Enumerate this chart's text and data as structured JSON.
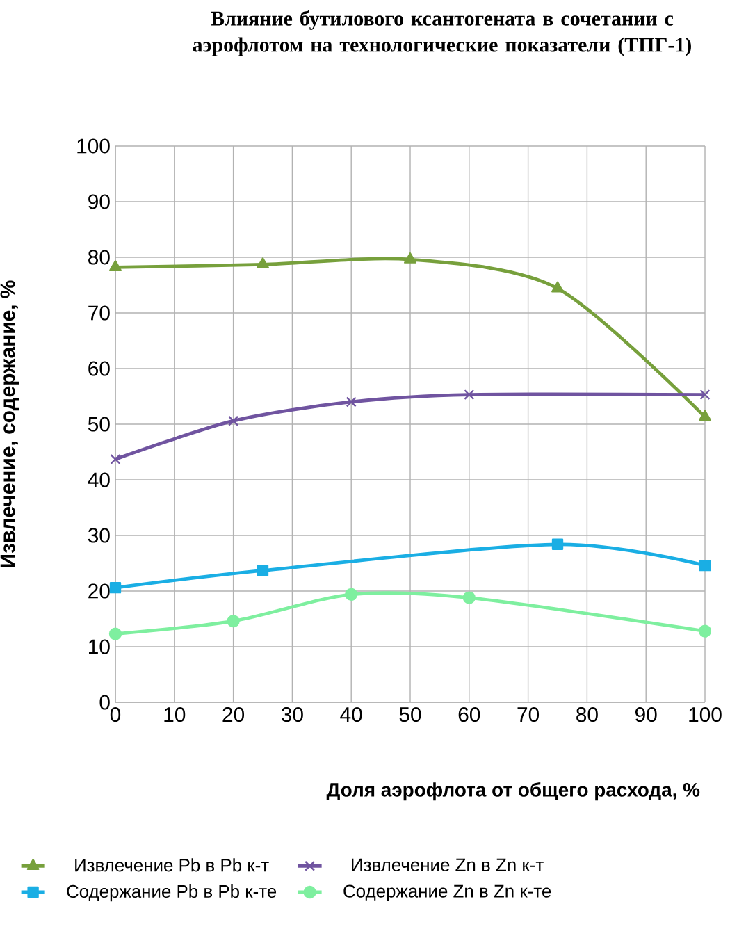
{
  "chart_data": {
    "type": "line",
    "title": "Влияние бутилового ксантогената в сочетании с аэрофлотом на технологические показатели (ТПГ-1)",
    "xlabel": "Доля аэрофлота от общего расхода, %",
    "ylabel": "Извлечение, содержание, %",
    "xlim": [
      0,
      100
    ],
    "xticks": [
      0,
      10,
      20,
      30,
      40,
      50,
      60,
      70,
      80,
      90,
      100
    ],
    "ylim": [
      0,
      100
    ],
    "yticks": [
      0,
      10,
      20,
      30,
      40,
      50,
      60,
      70,
      80,
      90,
      100
    ],
    "grid": true,
    "legend": "bottom",
    "line_style": "solid",
    "series": [
      {
        "name": "Извлечение Pb в Pb к-т",
        "color": "#77a03c",
        "marker": "triangle",
        "x": [
          0,
          25,
          50,
          75,
          100
        ],
        "values": [
          78.2,
          78.7,
          79.6,
          74.4,
          51.3
        ]
      },
      {
        "name": "Извлечение Zn в Zn к-т",
        "color": "#7054a0",
        "marker": "cross",
        "x": [
          0,
          20,
          40,
          60,
          100
        ],
        "values": [
          43.7,
          50.6,
          54.0,
          55.3,
          55.3
        ]
      },
      {
        "name": "Содержание Pb в Pb к-те",
        "color": "#1aaee4",
        "marker": "square",
        "x": [
          0,
          25,
          75,
          100
        ],
        "values": [
          20.6,
          23.7,
          28.4,
          24.6
        ]
      },
      {
        "name": "Содержание Zn в Zn к-те",
        "color": "#7eef9f",
        "marker": "circle",
        "x": [
          0,
          20,
          40,
          60,
          100
        ],
        "values": [
          12.3,
          14.6,
          19.4,
          18.8,
          12.8
        ]
      }
    ]
  }
}
